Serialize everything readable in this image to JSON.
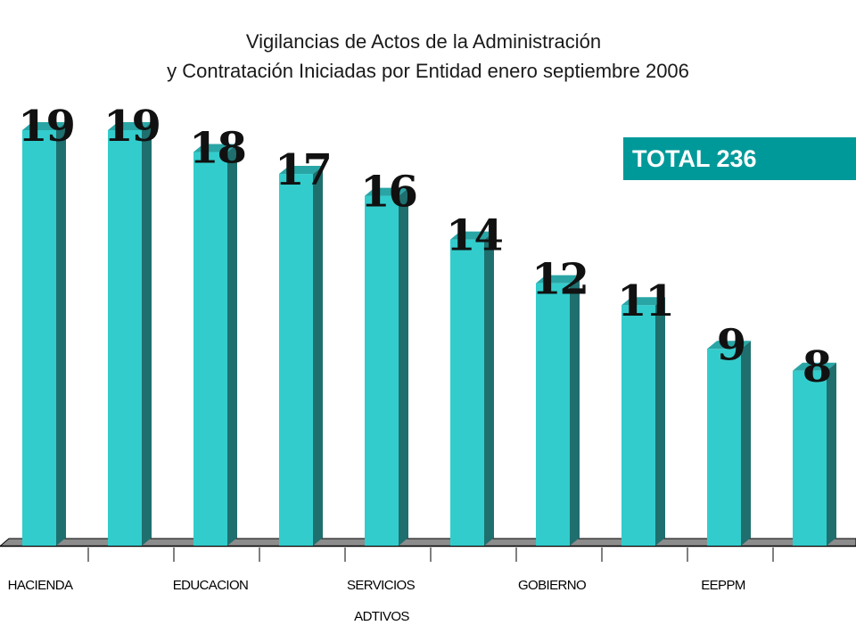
{
  "chart_data": {
    "type": "bar",
    "title_lines": [
      "Vigilancias de Actos de la Administración",
      "y Contratación Iniciadas por Entidad enero septiembre 2006"
    ],
    "categories": [
      "HACIENDA",
      "",
      "EDUCACION",
      "",
      "SERVICIOS",
      "",
      "GOBIERNO",
      "",
      "EEPPM",
      ""
    ],
    "category_labels_row2": [
      "",
      "",
      "",
      "",
      "ADTIVOS",
      "",
      "",
      "",
      "",
      ""
    ],
    "values": [
      19,
      19,
      18,
      17,
      16,
      14,
      12,
      11,
      9,
      8
    ],
    "data_labels": [
      "19",
      "19",
      "18",
      "17",
      "16",
      "14",
      "12",
      "11",
      "9",
      "8"
    ],
    "ylim": [
      0,
      19
    ],
    "grid": false,
    "legend": "none",
    "style": "3d-column",
    "colors": {
      "bar_front": "#33CCCC",
      "bar_side": "#1F6F6F",
      "bar_top": "#2AA5A5",
      "floor": "#7f7f7f"
    }
  },
  "annotation": {
    "total_label": "TOTAL 236",
    "color": "#009999"
  }
}
